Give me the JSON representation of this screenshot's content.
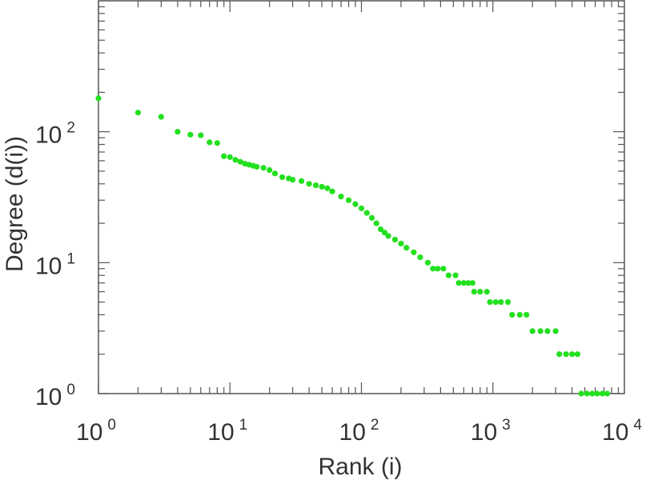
{
  "chart_data": {
    "type": "scatter",
    "title": "",
    "xlabel": "Rank (i)",
    "ylabel": "Degree (d(i))",
    "x_scale": "log",
    "y_scale": "log",
    "xlim": [
      1,
      10000
    ],
    "ylim": [
      1,
      1000
    ],
    "grid": false,
    "legend": "none",
    "marker_color": "#22e01e",
    "x_ticks": [
      {
        "base": "10",
        "exp": "0",
        "value": 1
      },
      {
        "base": "10",
        "exp": "1",
        "value": 10
      },
      {
        "base": "10",
        "exp": "2",
        "value": 100
      },
      {
        "base": "10",
        "exp": "3",
        "value": 1000
      },
      {
        "base": "10",
        "exp": "4",
        "value": 10000
      }
    ],
    "y_ticks": [
      {
        "base": "10",
        "exp": "0",
        "value": 1
      },
      {
        "base": "10",
        "exp": "1",
        "value": 10
      },
      {
        "base": "10",
        "exp": "2",
        "value": 100
      }
    ],
    "points": [
      [
        1,
        180
      ],
      [
        2,
        140
      ],
      [
        3,
        130
      ],
      [
        4,
        100
      ],
      [
        5,
        95
      ],
      [
        6,
        94
      ],
      [
        7,
        83
      ],
      [
        8,
        82
      ],
      [
        9,
        65
      ],
      [
        10,
        64
      ],
      [
        11,
        61
      ],
      [
        12,
        59
      ],
      [
        13,
        57
      ],
      [
        14,
        56
      ],
      [
        15,
        55
      ],
      [
        16,
        54
      ],
      [
        18,
        53
      ],
      [
        20,
        51
      ],
      [
        22,
        48
      ],
      [
        25,
        45
      ],
      [
        28,
        44
      ],
      [
        30,
        43
      ],
      [
        35,
        42
      ],
      [
        40,
        40
      ],
      [
        45,
        39
      ],
      [
        50,
        38
      ],
      [
        55,
        37
      ],
      [
        60,
        35
      ],
      [
        70,
        32
      ],
      [
        80,
        30
      ],
      [
        90,
        28
      ],
      [
        100,
        26
      ],
      [
        110,
        24
      ],
      [
        120,
        22
      ],
      [
        130,
        20
      ],
      [
        140,
        18
      ],
      [
        150,
        17
      ],
      [
        160,
        16
      ],
      [
        180,
        15
      ],
      [
        200,
        14
      ],
      [
        220,
        13
      ],
      [
        250,
        12
      ],
      [
        280,
        11
      ],
      [
        320,
        10
      ],
      [
        350,
        9
      ],
      [
        380,
        9
      ],
      [
        420,
        9
      ],
      [
        460,
        8
      ],
      [
        520,
        8
      ],
      [
        550,
        7
      ],
      [
        600,
        7
      ],
      [
        650,
        7
      ],
      [
        700,
        7
      ],
      [
        720,
        6
      ],
      [
        800,
        6
      ],
      [
        900,
        6
      ],
      [
        950,
        5
      ],
      [
        1050,
        5
      ],
      [
        1150,
        5
      ],
      [
        1300,
        5
      ],
      [
        1400,
        4
      ],
      [
        1600,
        4
      ],
      [
        1800,
        4
      ],
      [
        2000,
        3
      ],
      [
        2300,
        3
      ],
      [
        2600,
        3
      ],
      [
        3000,
        3
      ],
      [
        3200,
        2
      ],
      [
        3600,
        2
      ],
      [
        4000,
        2
      ],
      [
        4400,
        2
      ],
      [
        4700,
        1
      ],
      [
        5200,
        1
      ],
      [
        5700,
        1
      ],
      [
        6200,
        1
      ],
      [
        6800,
        1
      ],
      [
        7400,
        1
      ]
    ]
  }
}
